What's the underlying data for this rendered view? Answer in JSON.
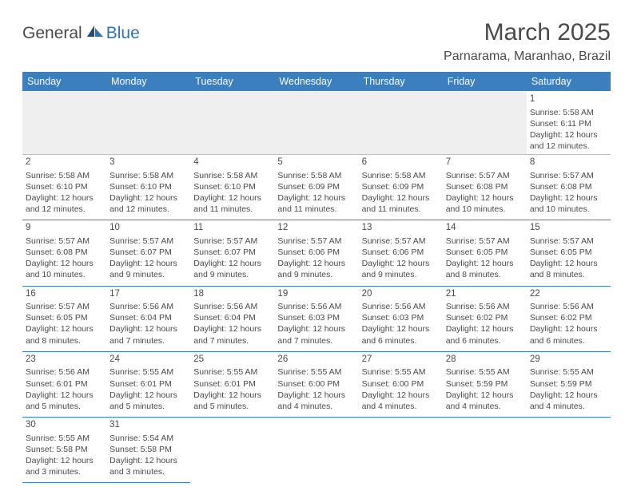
{
  "logo": {
    "dark": "General",
    "blue": "Blue"
  },
  "title": "March 2025",
  "location": "Parnarama, Maranhao, Brazil",
  "brand_color": "#3b7fbf",
  "weekdays": [
    "Sunday",
    "Monday",
    "Tuesday",
    "Wednesday",
    "Thursday",
    "Friday",
    "Saturday"
  ],
  "days": {
    "1": {
      "sunrise": "5:58 AM",
      "sunset": "6:11 PM",
      "daylight": "12 hours and 12 minutes."
    },
    "2": {
      "sunrise": "5:58 AM",
      "sunset": "6:10 PM",
      "daylight": "12 hours and 12 minutes."
    },
    "3": {
      "sunrise": "5:58 AM",
      "sunset": "6:10 PM",
      "daylight": "12 hours and 12 minutes."
    },
    "4": {
      "sunrise": "5:58 AM",
      "sunset": "6:10 PM",
      "daylight": "12 hours and 11 minutes."
    },
    "5": {
      "sunrise": "5:58 AM",
      "sunset": "6:09 PM",
      "daylight": "12 hours and 11 minutes."
    },
    "6": {
      "sunrise": "5:58 AM",
      "sunset": "6:09 PM",
      "daylight": "12 hours and 11 minutes."
    },
    "7": {
      "sunrise": "5:57 AM",
      "sunset": "6:08 PM",
      "daylight": "12 hours and 10 minutes."
    },
    "8": {
      "sunrise": "5:57 AM",
      "sunset": "6:08 PM",
      "daylight": "12 hours and 10 minutes."
    },
    "9": {
      "sunrise": "5:57 AM",
      "sunset": "6:08 PM",
      "daylight": "12 hours and 10 minutes."
    },
    "10": {
      "sunrise": "5:57 AM",
      "sunset": "6:07 PM",
      "daylight": "12 hours and 9 minutes."
    },
    "11": {
      "sunrise": "5:57 AM",
      "sunset": "6:07 PM",
      "daylight": "12 hours and 9 minutes."
    },
    "12": {
      "sunrise": "5:57 AM",
      "sunset": "6:06 PM",
      "daylight": "12 hours and 9 minutes."
    },
    "13": {
      "sunrise": "5:57 AM",
      "sunset": "6:06 PM",
      "daylight": "12 hours and 9 minutes."
    },
    "14": {
      "sunrise": "5:57 AM",
      "sunset": "6:05 PM",
      "daylight": "12 hours and 8 minutes."
    },
    "15": {
      "sunrise": "5:57 AM",
      "sunset": "6:05 PM",
      "daylight": "12 hours and 8 minutes."
    },
    "16": {
      "sunrise": "5:57 AM",
      "sunset": "6:05 PM",
      "daylight": "12 hours and 8 minutes."
    },
    "17": {
      "sunrise": "5:56 AM",
      "sunset": "6:04 PM",
      "daylight": "12 hours and 7 minutes."
    },
    "18": {
      "sunrise": "5:56 AM",
      "sunset": "6:04 PM",
      "daylight": "12 hours and 7 minutes."
    },
    "19": {
      "sunrise": "5:56 AM",
      "sunset": "6:03 PM",
      "daylight": "12 hours and 7 minutes."
    },
    "20": {
      "sunrise": "5:56 AM",
      "sunset": "6:03 PM",
      "daylight": "12 hours and 6 minutes."
    },
    "21": {
      "sunrise": "5:56 AM",
      "sunset": "6:02 PM",
      "daylight": "12 hours and 6 minutes."
    },
    "22": {
      "sunrise": "5:56 AM",
      "sunset": "6:02 PM",
      "daylight": "12 hours and 6 minutes."
    },
    "23": {
      "sunrise": "5:56 AM",
      "sunset": "6:01 PM",
      "daylight": "12 hours and 5 minutes."
    },
    "24": {
      "sunrise": "5:55 AM",
      "sunset": "6:01 PM",
      "daylight": "12 hours and 5 minutes."
    },
    "25": {
      "sunrise": "5:55 AM",
      "sunset": "6:01 PM",
      "daylight": "12 hours and 5 minutes."
    },
    "26": {
      "sunrise": "5:55 AM",
      "sunset": "6:00 PM",
      "daylight": "12 hours and 4 minutes."
    },
    "27": {
      "sunrise": "5:55 AM",
      "sunset": "6:00 PM",
      "daylight": "12 hours and 4 minutes."
    },
    "28": {
      "sunrise": "5:55 AM",
      "sunset": "5:59 PM",
      "daylight": "12 hours and 4 minutes."
    },
    "29": {
      "sunrise": "5:55 AM",
      "sunset": "5:59 PM",
      "daylight": "12 hours and 4 minutes."
    },
    "30": {
      "sunrise": "5:55 AM",
      "sunset": "5:58 PM",
      "daylight": "12 hours and 3 minutes."
    },
    "31": {
      "sunrise": "5:54 AM",
      "sunset": "5:58 PM",
      "daylight": "12 hours and 3 minutes."
    }
  },
  "grid": [
    [
      null,
      null,
      null,
      null,
      null,
      null,
      1
    ],
    [
      2,
      3,
      4,
      5,
      6,
      7,
      8
    ],
    [
      9,
      10,
      11,
      12,
      13,
      14,
      15
    ],
    [
      16,
      17,
      18,
      19,
      20,
      21,
      22
    ],
    [
      23,
      24,
      25,
      26,
      27,
      28,
      29
    ],
    [
      30,
      31,
      null,
      null,
      null,
      null,
      null
    ]
  ],
  "labels": {
    "sunrise": "Sunrise: ",
    "sunset": "Sunset: ",
    "daylight": "Daylight: "
  }
}
